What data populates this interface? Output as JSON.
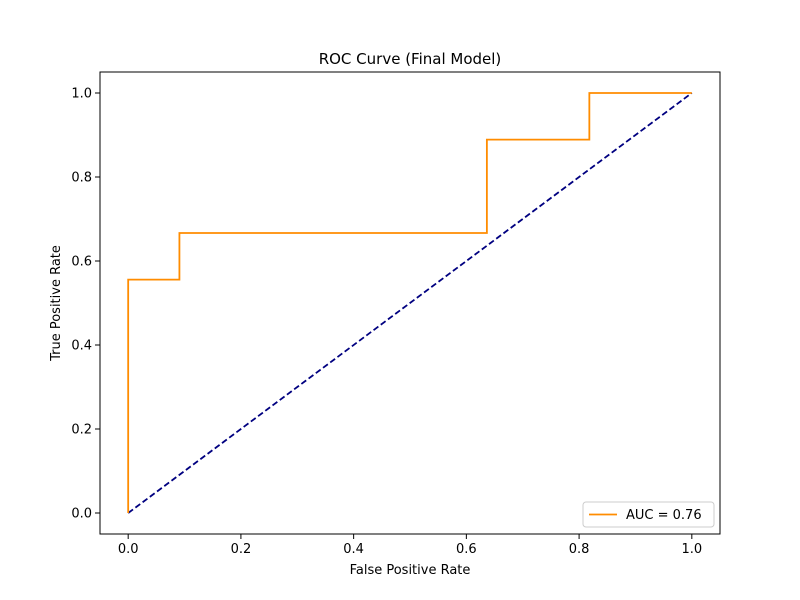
{
  "chart_data": {
    "type": "line",
    "title": "ROC Curve (Final Model)",
    "xlabel": "False Positive Rate",
    "ylabel": "True Positive Rate",
    "xlim": [
      -0.05,
      1.05
    ],
    "ylim": [
      -0.05,
      1.05
    ],
    "grid": false,
    "legend_position": "lower right",
    "x_ticks": [
      {
        "value": 0.0,
        "label": "0.0"
      },
      {
        "value": 0.2,
        "label": "0.2"
      },
      {
        "value": 0.4,
        "label": "0.4"
      },
      {
        "value": 0.6,
        "label": "0.6"
      },
      {
        "value": 0.8,
        "label": "0.8"
      },
      {
        "value": 1.0,
        "label": "1.0"
      }
    ],
    "y_ticks": [
      {
        "value": 0.0,
        "label": "0.0"
      },
      {
        "value": 0.2,
        "label": "0.2"
      },
      {
        "value": 0.4,
        "label": "0.4"
      },
      {
        "value": 0.6,
        "label": "0.6"
      },
      {
        "value": 0.8,
        "label": "0.8"
      },
      {
        "value": 1.0,
        "label": "1.0"
      }
    ],
    "series": [
      {
        "name": "AUC = 0.76",
        "color": "#ff8c00",
        "style": "solid",
        "x": [
          0.0,
          0.0,
          0.0909,
          0.0909,
          0.6364,
          0.6364,
          0.8182,
          0.8182,
          1.0
        ],
        "y": [
          0.0,
          0.5556,
          0.5556,
          0.6667,
          0.6667,
          0.8889,
          0.8889,
          1.0,
          1.0
        ]
      },
      {
        "name": "",
        "color": "#000080",
        "style": "dashed",
        "x": [
          0.0,
          1.0
        ],
        "y": [
          0.0,
          1.0
        ]
      }
    ]
  }
}
